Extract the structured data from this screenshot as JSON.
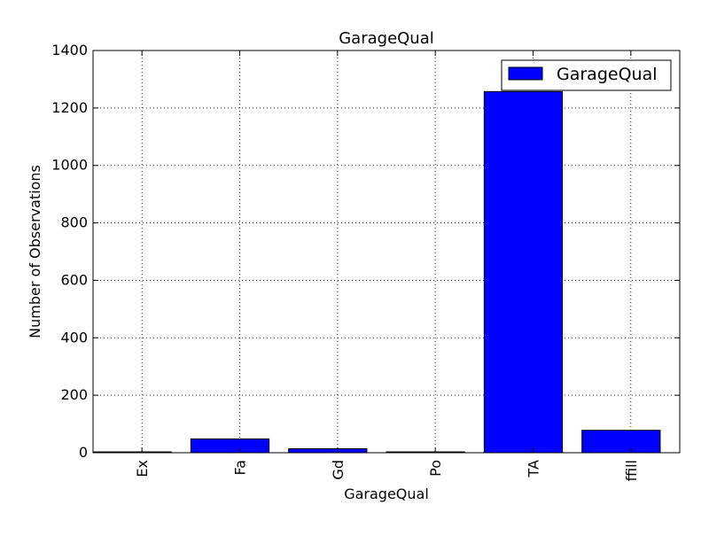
{
  "chart_data": {
    "type": "bar",
    "title": "GarageQual",
    "xlabel": "GarageQual",
    "ylabel": "Number of Observations",
    "categories": [
      "Ex",
      "Fa",
      "Gd",
      "Po",
      "TA",
      "ffill"
    ],
    "series": [
      {
        "name": "GarageQual",
        "values": [
          3,
          48,
          14,
          3,
          1257,
          78
        ],
        "color": "#0000ff"
      }
    ],
    "ylim": [
      0,
      1400
    ],
    "yticks": [
      0,
      200,
      400,
      600,
      800,
      1000,
      1200,
      1400
    ],
    "grid": true,
    "legend_position": "top-right",
    "x_tick_rotation": "vertical"
  }
}
